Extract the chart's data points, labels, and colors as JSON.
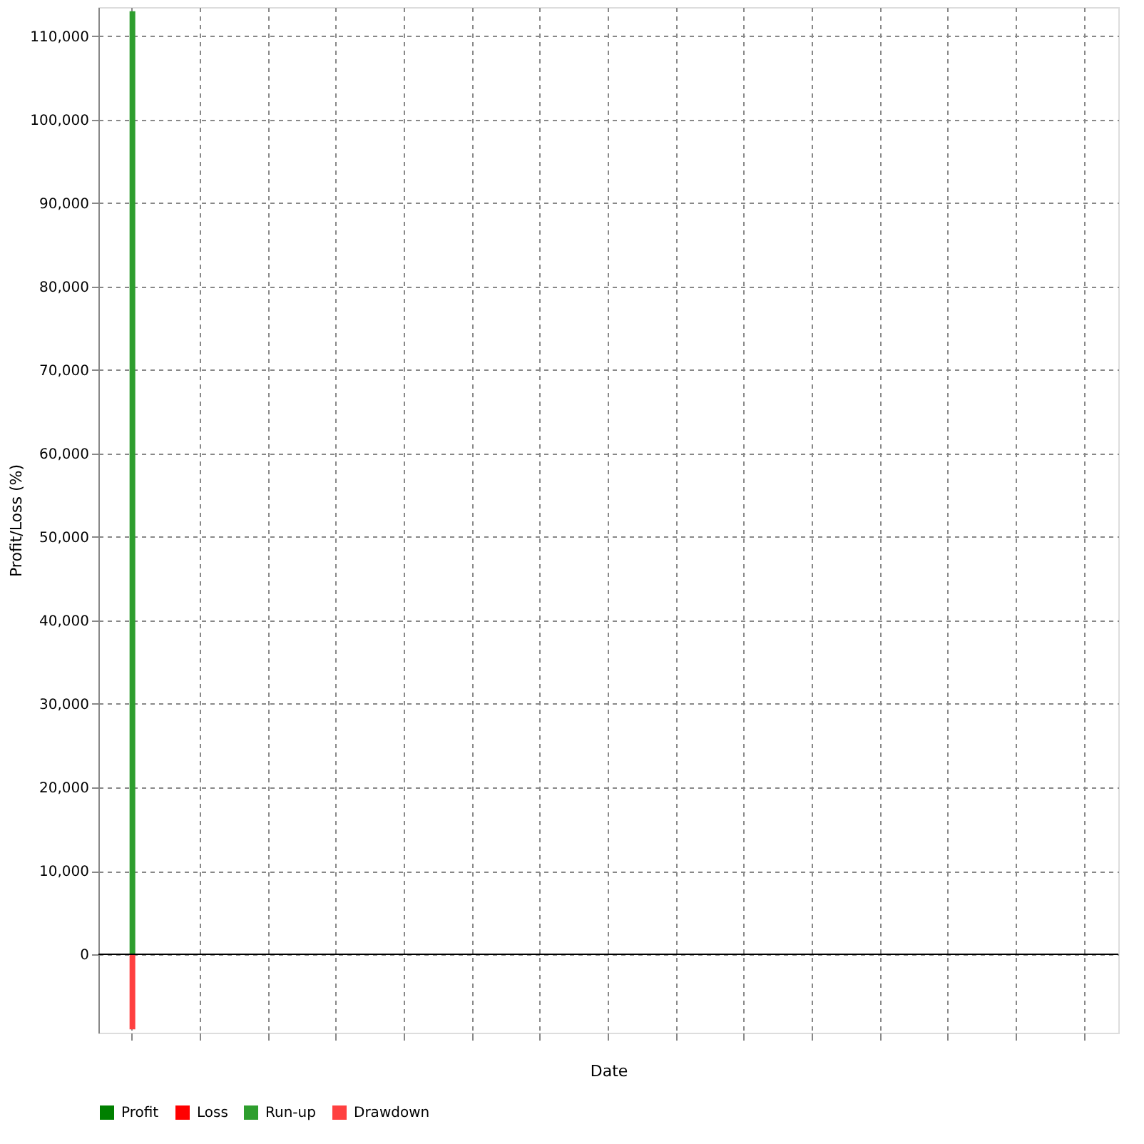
{
  "chart_data": {
    "type": "bar",
    "xlabel": "Date",
    "ylabel": "Profit/Loss (%)",
    "categories": [
      null,
      null,
      null,
      null,
      null,
      null,
      null,
      null,
      null,
      null,
      null,
      null,
      null,
      null,
      null
    ],
    "series": [
      {
        "name": "Profit",
        "color": "#008000",
        "values": [
          null,
          null,
          null,
          null,
          null,
          null,
          null,
          null,
          null,
          null,
          null,
          null,
          null,
          null,
          null
        ]
      },
      {
        "name": "Loss",
        "color": "#ff0000",
        "values": [
          null,
          null,
          null,
          null,
          null,
          null,
          null,
          null,
          null,
          null,
          null,
          null,
          null,
          null,
          null
        ]
      },
      {
        "name": "Run-up",
        "color": "#2e9e2e",
        "values": [
          113000,
          null,
          null,
          null,
          null,
          null,
          null,
          null,
          null,
          null,
          null,
          null,
          null,
          null,
          null
        ]
      },
      {
        "name": "Drawdown",
        "color": "#ff4040",
        "values": [
          -9000,
          null,
          null,
          null,
          null,
          null,
          null,
          null,
          null,
          null,
          null,
          null,
          null,
          null,
          null
        ]
      }
    ],
    "ylim": [
      -9400,
      113500
    ],
    "yticks": [
      0,
      {
        "value": 10000,
        "label": "10,000"
      },
      {
        "value": 20000,
        "label": "20,000"
      },
      {
        "value": 30000,
        "label": "30,000"
      },
      {
        "value": 40000,
        "label": "40,000"
      },
      {
        "value": 50000,
        "label": "50,000"
      },
      {
        "value": 60000,
        "label": "60,000"
      },
      {
        "value": 70000,
        "label": "70,000"
      },
      {
        "value": 80000,
        "label": "80,000"
      },
      {
        "value": 90000,
        "label": "90,000"
      },
      {
        "value": 100000,
        "label": "100,000"
      },
      {
        "value": 110000,
        "label": "110,000"
      }
    ],
    "grid": true,
    "legend": "bottom"
  }
}
